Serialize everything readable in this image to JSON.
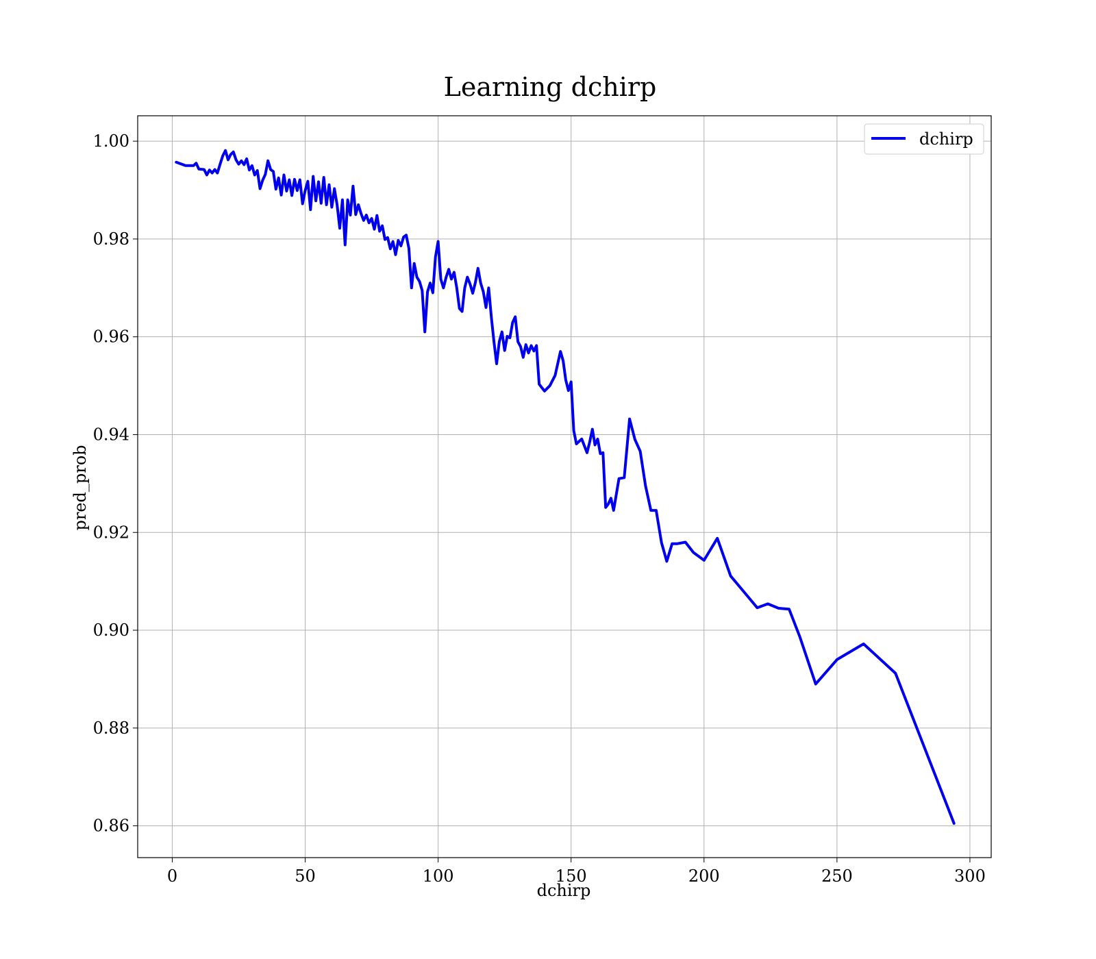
{
  "chart_data": {
    "type": "line",
    "title": "Learning dchirp",
    "xlabel": "dchirp",
    "ylabel": "pred_prob",
    "xlim": [
      -13,
      308
    ],
    "ylim": [
      0.8535,
      1.0052
    ],
    "xticks": [
      0,
      50,
      100,
      150,
      200,
      250,
      300
    ],
    "xtick_labels": [
      "0",
      "50",
      "100",
      "150",
      "200",
      "250",
      "300"
    ],
    "yticks": [
      0.86,
      0.88,
      0.9,
      0.92,
      0.94,
      0.96,
      0.98,
      1.0
    ],
    "ytick_labels": [
      "0.86",
      "0.88",
      "0.90",
      "0.92",
      "0.94",
      "0.96",
      "0.98",
      "1.00"
    ],
    "grid": true,
    "legend": {
      "position": "top-right",
      "entries": [
        "dchirp"
      ]
    },
    "colors": {
      "line": "#0000ee",
      "frame": "#000000",
      "grid": "#b0b0b0"
    },
    "series": [
      {
        "name": "dchirp",
        "x": [
          1.5,
          5,
          8,
          9,
          10,
          12,
          13,
          14,
          15,
          16,
          17,
          18,
          19,
          20,
          21,
          22,
          23,
          24,
          25,
          26,
          27,
          28,
          29,
          30,
          31,
          32,
          33,
          34,
          35,
          36,
          37,
          38,
          39,
          40,
          41,
          42,
          43,
          44,
          45,
          46,
          47,
          48,
          49,
          50,
          51,
          52,
          53,
          54,
          55,
          56,
          57,
          58,
          59,
          60,
          61,
          62,
          63,
          64,
          65,
          66,
          67,
          68,
          69,
          70,
          71,
          72,
          73,
          74,
          75,
          76,
          77,
          78,
          79,
          80,
          81,
          82,
          83,
          84,
          85,
          86,
          87,
          88,
          89,
          90,
          91,
          92,
          93,
          94,
          95,
          96,
          97,
          98,
          99,
          100,
          101,
          102,
          103,
          104,
          105,
          106,
          107,
          108,
          109,
          110,
          111,
          112,
          113,
          114,
          115,
          116,
          117,
          118,
          119,
          120,
          121,
          122,
          123,
          124,
          125,
          126,
          127,
          128,
          129,
          130,
          131,
          132,
          133,
          134,
          135,
          136,
          137,
          138,
          140,
          142,
          144,
          146,
          147,
          148,
          149,
          150,
          151,
          152,
          154,
          156,
          157,
          158,
          159,
          160,
          161,
          162,
          163,
          164,
          165,
          166,
          168,
          170,
          172,
          174,
          176,
          178,
          180,
          182,
          184,
          186,
          188,
          190,
          193,
          196,
          200,
          205,
          210,
          216,
          220,
          224,
          228,
          232,
          236,
          242,
          250,
          260,
          272,
          294
        ],
        "y": [
          0.9957,
          0.995,
          0.995,
          0.9955,
          0.9943,
          0.9942,
          0.9931,
          0.9941,
          0.9935,
          0.9942,
          0.9935,
          0.9953,
          0.997,
          0.9981,
          0.9962,
          0.9973,
          0.9978,
          0.9962,
          0.9953,
          0.996,
          0.9952,
          0.9964,
          0.9941,
          0.995,
          0.9931,
          0.994,
          0.9903,
          0.992,
          0.9932,
          0.996,
          0.9942,
          0.9938,
          0.9902,
          0.9925,
          0.989,
          0.9931,
          0.9898,
          0.9921,
          0.9889,
          0.9922,
          0.9899,
          0.9921,
          0.9872,
          0.9899,
          0.9918,
          0.986,
          0.9928,
          0.9878,
          0.9917,
          0.9873,
          0.9926,
          0.987,
          0.9911,
          0.9865,
          0.9903,
          0.987,
          0.9822,
          0.988,
          0.9788,
          0.988,
          0.9849,
          0.9908,
          0.985,
          0.987,
          0.9852,
          0.9838,
          0.9849,
          0.9833,
          0.9842,
          0.982,
          0.9848,
          0.9816,
          0.9827,
          0.9799,
          0.9803,
          0.978,
          0.9795,
          0.9768,
          0.9797,
          0.9786,
          0.9804,
          0.9808,
          0.9781,
          0.97,
          0.975,
          0.9722,
          0.9713,
          0.9695,
          0.961,
          0.9692,
          0.971,
          0.969,
          0.9763,
          0.9795,
          0.9718,
          0.97,
          0.9722,
          0.9738,
          0.9718,
          0.9732,
          0.97,
          0.9658,
          0.9652,
          0.97,
          0.9722,
          0.9708,
          0.9689,
          0.9711,
          0.974,
          0.971,
          0.9692,
          0.966,
          0.97,
          0.964,
          0.959,
          0.9545,
          0.959,
          0.961,
          0.9572,
          0.9601,
          0.9598,
          0.9629,
          0.9641,
          0.959,
          0.958,
          0.9558,
          0.9584,
          0.9567,
          0.9582,
          0.9571,
          0.9582,
          0.9503,
          0.9489,
          0.95,
          0.9521,
          0.957,
          0.9551,
          0.9512,
          0.949,
          0.9508,
          0.9408,
          0.9381,
          0.9391,
          0.9363,
          0.9385,
          0.9411,
          0.9379,
          0.9391,
          0.9361,
          0.9363,
          0.9251,
          0.9258,
          0.927,
          0.9245,
          0.931,
          0.9312,
          0.9432,
          0.939,
          0.9366,
          0.9295,
          0.9245,
          0.9245,
          0.9179,
          0.9141,
          0.9177,
          0.9177,
          0.918,
          0.9159,
          0.9143,
          0.9188,
          0.9111,
          0.9072,
          0.9046,
          0.9054,
          0.9045,
          0.9043,
          0.8987,
          0.889,
          0.894,
          0.8972,
          0.8912,
          0.8605
        ]
      }
    ]
  }
}
